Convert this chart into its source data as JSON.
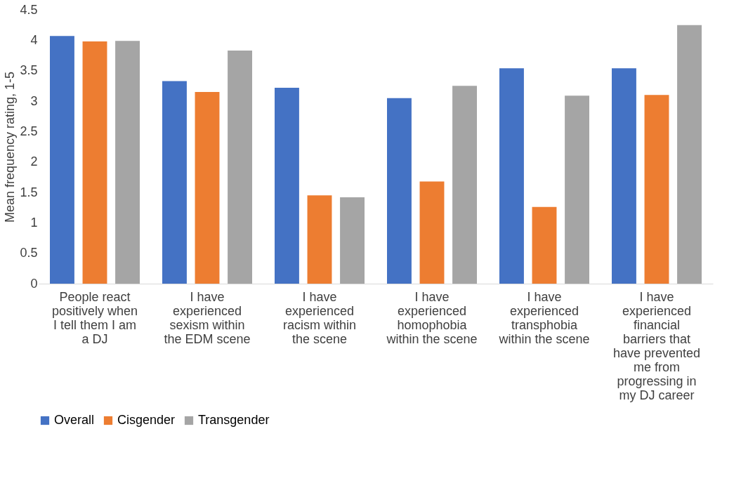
{
  "chart_data": {
    "type": "bar",
    "ylabel": "Mean frequency rating, 1-5",
    "categories": [
      "People react positively when I tell them I am a DJ",
      "I have experienced sexism within the EDM scene",
      "I have experienced racism within the scene",
      "I have experienced homophobia within the scene",
      "I have experienced transphobia within the scene",
      "I have experienced financial barriers that have prevented me from progressing in my DJ career"
    ],
    "series": [
      {
        "name": "Overall",
        "color": "#4472c4",
        "values": [
          4.07,
          3.33,
          3.22,
          3.05,
          3.54,
          3.54
        ]
      },
      {
        "name": "Cisgender",
        "color": "#ed7d31",
        "values": [
          3.98,
          3.15,
          1.45,
          1.68,
          1.26,
          3.1
        ]
      },
      {
        "name": "Transgender",
        "color": "#a5a5a5",
        "values": [
          3.99,
          3.83,
          1.42,
          3.25,
          3.09,
          4.25
        ]
      }
    ],
    "ylim": [
      0,
      4.5
    ],
    "yticks": [
      0,
      0.5,
      1,
      1.5,
      2,
      2.5,
      3,
      3.5,
      4,
      4.5
    ],
    "grid": false,
    "legend": "bottom"
  }
}
